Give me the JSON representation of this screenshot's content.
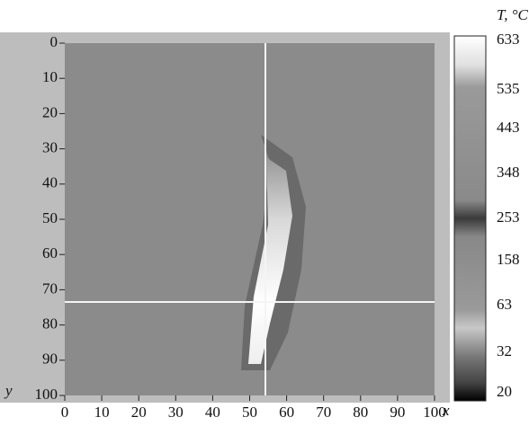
{
  "x_axis": {
    "label": "x",
    "ticks": [
      0,
      10,
      20,
      30,
      40,
      50,
      60,
      70,
      80,
      90,
      100
    ]
  },
  "y_axis": {
    "label": "y",
    "ticks": [
      0,
      10,
      20,
      30,
      40,
      50,
      60,
      70,
      80,
      90,
      100
    ]
  },
  "colorbar": {
    "title": "T, °C",
    "labels": [
      633,
      535,
      443,
      348,
      253,
      158,
      63,
      32,
      20
    ]
  }
}
